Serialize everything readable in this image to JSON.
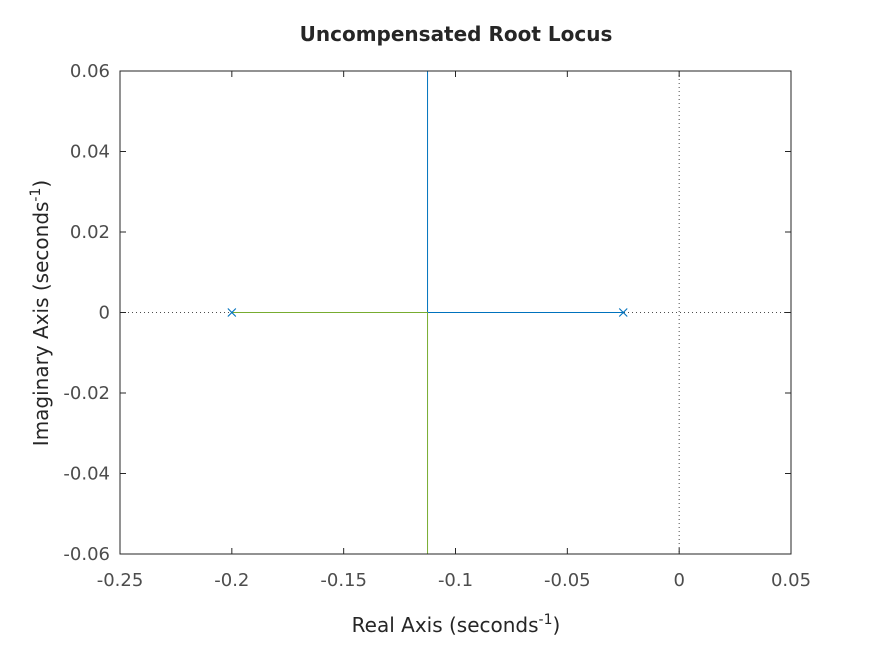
{
  "chart_data": {
    "type": "scatter",
    "title": "Uncompensated Root Locus",
    "xlabel": {
      "text": "Real Axis (seconds",
      "superscript": "-1",
      "suffix": ")"
    },
    "ylabel": {
      "text": "Imaginary Axis (seconds",
      "superscript": "-1",
      "suffix": ")"
    },
    "xlim": [
      -0.25,
      0.05
    ],
    "ylim": [
      -0.06,
      0.06
    ],
    "xticks": [
      -0.25,
      -0.2,
      -0.15,
      -0.1,
      -0.05,
      0,
      0.05
    ],
    "xtick_labels": [
      "-0.25",
      "-0.2",
      "-0.15",
      "-0.1",
      "-0.05",
      "0",
      "0.05"
    ],
    "yticks": [
      -0.06,
      -0.04,
      -0.02,
      0,
      0.02,
      0.04,
      0.06
    ],
    "ytick_labels": [
      "-0.06",
      "-0.04",
      "-0.02",
      "0",
      "0.02",
      "0.04",
      "0.06"
    ],
    "grid": false,
    "zero_lines": "dotted",
    "poles": [
      {
        "x": -0.2,
        "y": 0
      },
      {
        "x": -0.025,
        "y": 0
      }
    ],
    "series": [
      {
        "color": "#0072bd",
        "points": [
          [
            -0.025,
            0
          ],
          [
            -0.1125,
            0
          ],
          [
            -0.1125,
            0.06
          ]
        ]
      },
      {
        "color": "#77ac30",
        "points": [
          [
            -0.2,
            0
          ],
          [
            -0.1125,
            0
          ],
          [
            -0.1125,
            -0.06
          ]
        ]
      }
    ],
    "pole_marker": {
      "symbol": "x",
      "color": "#0072bd"
    },
    "colors": {
      "axis": "#262626",
      "tick_text": "#4d4d4d",
      "zero_line": "#4d4d4d"
    }
  }
}
